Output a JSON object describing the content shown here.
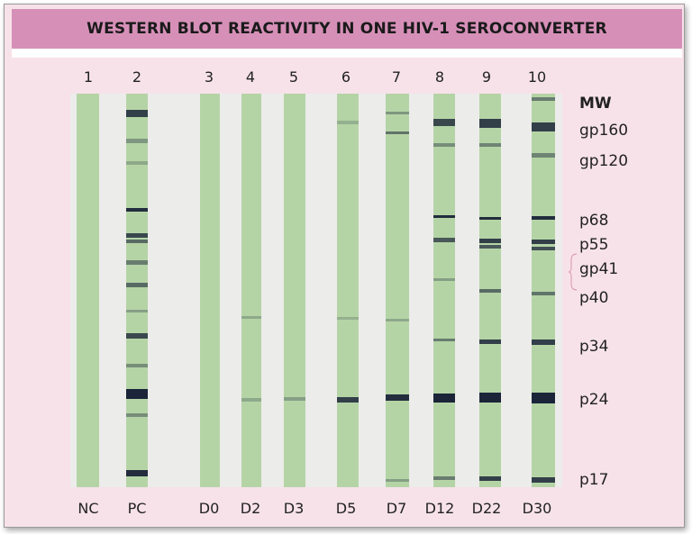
{
  "title": "WESTERN BLOT REACTIVITY IN ONE HIV-1 SEROCONVERTER",
  "mw_header": "MW",
  "markers": [
    "gp160",
    "gp120",
    "p68",
    "p55",
    "gp41",
    "p40",
    "p34",
    "p24",
    "p17"
  ],
  "lanes": [
    {
      "number": "1",
      "label": "NC"
    },
    {
      "number": "2",
      "label": "PC"
    },
    {
      "number": "3",
      "label": "D0"
    },
    {
      "number": "4",
      "label": "D2"
    },
    {
      "number": "5",
      "label": "D3"
    },
    {
      "number": "6",
      "label": "D5"
    },
    {
      "number": "7",
      "label": "D7"
    },
    {
      "number": "8",
      "label": "D12"
    },
    {
      "number": "9",
      "label": "D22"
    },
    {
      "number": "10",
      "label": "D30"
    }
  ],
  "colors": {
    "header_bg": "#d690b8",
    "panel_bg": "#f7e2ea",
    "strip": "#b5d4a6",
    "band": "#1b2438"
  }
}
